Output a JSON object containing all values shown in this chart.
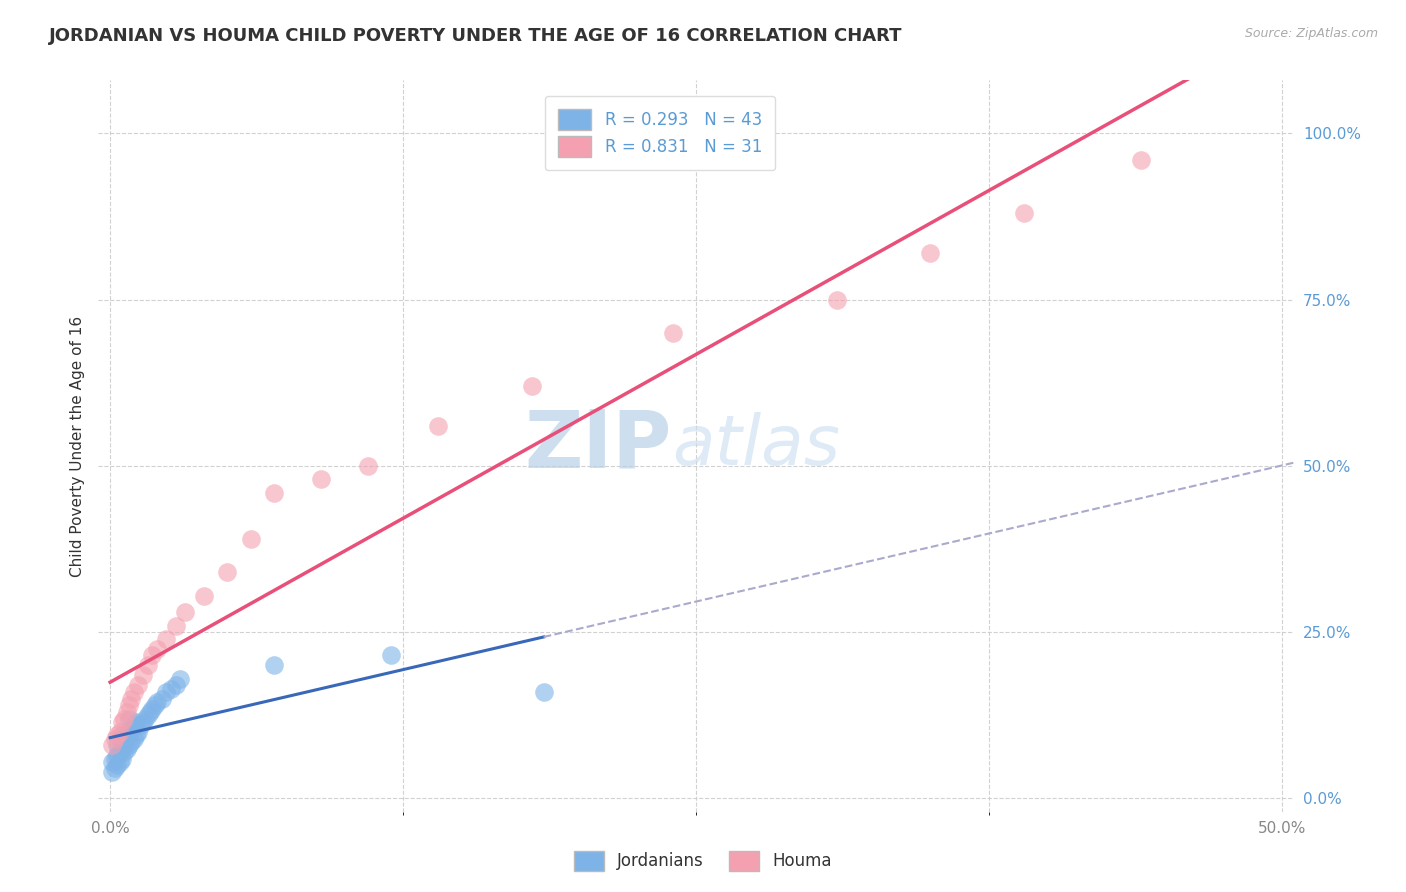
{
  "title": "JORDANIAN VS HOUMA CHILD POVERTY UNDER THE AGE OF 16 CORRELATION CHART",
  "source": "Source: ZipAtlas.com",
  "ylabel": "Child Poverty Under the Age of 16",
  "xlim": [
    -0.005,
    0.505
  ],
  "ylim": [
    -0.02,
    1.08
  ],
  "xtick_positions": [
    0.0,
    0.5
  ],
  "xtick_labels": [
    "0.0%",
    "50.0%"
  ],
  "ytick_positions": [
    0.0,
    0.25,
    0.5,
    0.75,
    1.0
  ],
  "ytick_labels": [
    "0.0%",
    "25.0%",
    "50.0%",
    "75.0%",
    "100.0%"
  ],
  "jordanian_R": 0.293,
  "jordanian_N": 43,
  "houma_R": 0.831,
  "houma_N": 31,
  "legend_label_1": "Jordanians",
  "legend_label_2": "Houma",
  "jordanian_color": "#7EB3E8",
  "houma_color": "#F4A0B0",
  "jordanian_line_color": "#3A68B8",
  "houma_line_color": "#E8507A",
  "background_color": "#FFFFFF",
  "grid_color": "#CCCCCC",
  "watermark_zip": "ZIP",
  "watermark_atlas": "atlas",
  "title_fontsize": 13,
  "axis_label_fontsize": 11,
  "tick_fontsize": 11,
  "jordanian_x": [
    0.001,
    0.001,
    0.002,
    0.002,
    0.003,
    0.003,
    0.003,
    0.004,
    0.004,
    0.004,
    0.005,
    0.005,
    0.005,
    0.006,
    0.006,
    0.007,
    0.007,
    0.008,
    0.008,
    0.008,
    0.009,
    0.009,
    0.01,
    0.01,
    0.011,
    0.011,
    0.012,
    0.013,
    0.014,
    0.015,
    0.016,
    0.017,
    0.018,
    0.019,
    0.02,
    0.022,
    0.024,
    0.026,
    0.028,
    0.03,
    0.07,
    0.12,
    0.185
  ],
  "jordanian_y": [
    0.04,
    0.055,
    0.045,
    0.06,
    0.05,
    0.065,
    0.08,
    0.055,
    0.07,
    0.09,
    0.06,
    0.075,
    0.095,
    0.07,
    0.085,
    0.075,
    0.095,
    0.08,
    0.1,
    0.12,
    0.085,
    0.105,
    0.09,
    0.11,
    0.095,
    0.115,
    0.1,
    0.11,
    0.115,
    0.12,
    0.125,
    0.13,
    0.135,
    0.14,
    0.145,
    0.15,
    0.16,
    0.165,
    0.17,
    0.18,
    0.2,
    0.215,
    0.16
  ],
  "houma_x": [
    0.001,
    0.002,
    0.003,
    0.004,
    0.005,
    0.006,
    0.007,
    0.008,
    0.009,
    0.01,
    0.012,
    0.014,
    0.016,
    0.018,
    0.02,
    0.024,
    0.028,
    0.032,
    0.04,
    0.05,
    0.06,
    0.07,
    0.09,
    0.11,
    0.14,
    0.18,
    0.24,
    0.31,
    0.35,
    0.39,
    0.44
  ],
  "houma_y": [
    0.08,
    0.09,
    0.095,
    0.1,
    0.115,
    0.12,
    0.13,
    0.14,
    0.15,
    0.16,
    0.17,
    0.185,
    0.2,
    0.215,
    0.225,
    0.24,
    0.26,
    0.28,
    0.305,
    0.34,
    0.39,
    0.46,
    0.48,
    0.5,
    0.56,
    0.62,
    0.7,
    0.75,
    0.82,
    0.88,
    0.96
  ]
}
